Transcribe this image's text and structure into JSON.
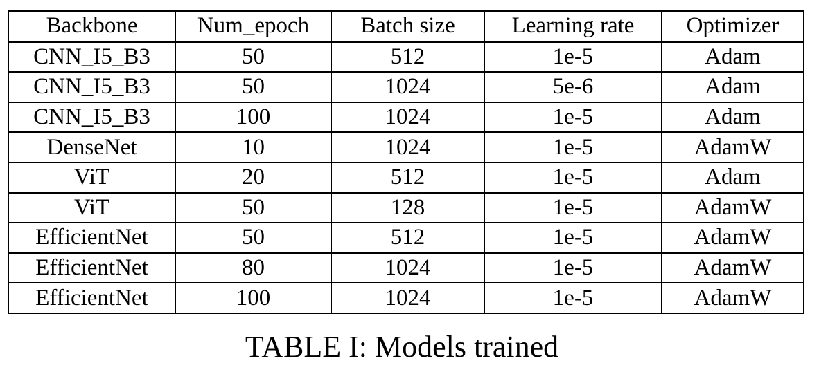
{
  "table": {
    "headers": [
      "Backbone",
      "Num_epoch",
      "Batch size",
      "Learning rate",
      "Optimizer"
    ],
    "rows": [
      [
        "CNN_I5_B3",
        "50",
        "512",
        "1e-5",
        "Adam"
      ],
      [
        "CNN_I5_B3",
        "50",
        "1024",
        "5e-6",
        "Adam"
      ],
      [
        "CNN_I5_B3",
        "100",
        "1024",
        "1e-5",
        "Adam"
      ],
      [
        "DenseNet",
        "10",
        "1024",
        "1e-5",
        "AdamW"
      ],
      [
        "ViT",
        "20",
        "512",
        "1e-5",
        "Adam"
      ],
      [
        "ViT",
        "50",
        "128",
        "1e-5",
        "AdamW"
      ],
      [
        "EfficientNet",
        "50",
        "512",
        "1e-5",
        "AdamW"
      ],
      [
        "EfficientNet",
        "80",
        "1024",
        "1e-5",
        "AdamW"
      ],
      [
        "EfficientNet",
        "100",
        "1024",
        "1e-5",
        "AdamW"
      ]
    ]
  },
  "caption": "TABLE I: Models trained"
}
